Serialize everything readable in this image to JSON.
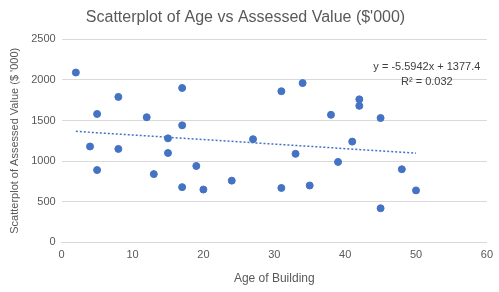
{
  "chart_data": {
    "type": "scatter",
    "title": "Scatterplot of Age vs Assessed Value ($'000)",
    "x_label": "Age of Building",
    "y_label": "Scatterplot of Assessed Value ($ '000)",
    "x": [
      2,
      4,
      5,
      5,
      8,
      8,
      12,
      13,
      15,
      15,
      17,
      17,
      17,
      19,
      20,
      24,
      27,
      31,
      31,
      33,
      34,
      35,
      38,
      39,
      41,
      42,
      42,
      45,
      45,
      48,
      50
    ],
    "values": [
      2090,
      1180,
      1580,
      890,
      1790,
      1150,
      1540,
      840,
      1280,
      1100,
      1900,
      1440,
      680,
      940,
      650,
      760,
      1270,
      1860,
      670,
      1090,
      1960,
      700,
      1570,
      990,
      1240,
      1760,
      1680,
      1530,
      420,
      900,
      640
    ],
    "color": "#4472c4",
    "marker": "circle",
    "trendline": {
      "x": [
        2,
        50
      ],
      "values": [
        1366.2,
        1097.7
      ],
      "color": "#4472c4",
      "line_style": "dotted"
    },
    "annotations": [
      "y = -5.5942x + 1377.4",
      "R² = 0.032"
    ],
    "xlim": [
      0,
      60
    ],
    "xticks": [
      0,
      10,
      20,
      30,
      40,
      50,
      60
    ],
    "ylim": [
      0,
      2500
    ],
    "yticks": [
      0,
      500,
      1000,
      1500,
      2000,
      2500
    ],
    "grid": true
  }
}
